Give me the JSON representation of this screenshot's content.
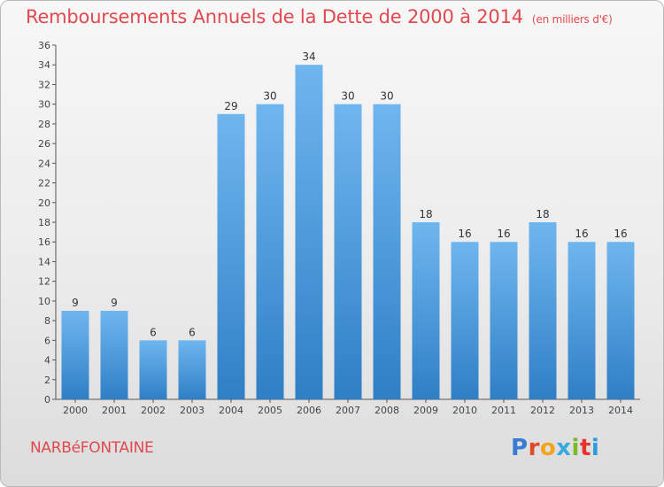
{
  "title": "Remboursements Annuels de la Dette de 2000 à 2014",
  "unit_note": "(en milliers d'€)",
  "commune": "NARBéFONTAINE",
  "logo": {
    "letters": [
      "P",
      "r",
      "o",
      "x",
      "i",
      "t",
      "i"
    ],
    "colors": [
      "#3a7bd5",
      "#e04a2a",
      "#f2a41a",
      "#36a9e1",
      "#7ab929",
      "#e8322f",
      "#2d9cdb"
    ]
  },
  "colors": {
    "bar": "#3f93d8",
    "bar_light": "#6fb6ef",
    "text": "#e0494f"
  },
  "chart_data": {
    "type": "bar",
    "categories": [
      "2000",
      "2001",
      "2002",
      "2003",
      "2004",
      "2005",
      "2006",
      "2007",
      "2008",
      "2009",
      "2010",
      "2011",
      "2012",
      "2013",
      "2014"
    ],
    "values": [
      9,
      9,
      6,
      6,
      29,
      30,
      34,
      30,
      30,
      18,
      16,
      16,
      18,
      16,
      16
    ],
    "ylim": [
      0,
      36
    ],
    "yticks": [
      0,
      2,
      4,
      6,
      8,
      10,
      12,
      14,
      16,
      18,
      20,
      22,
      24,
      26,
      28,
      30,
      32,
      34,
      36
    ],
    "grid": false,
    "data_labels": true
  }
}
